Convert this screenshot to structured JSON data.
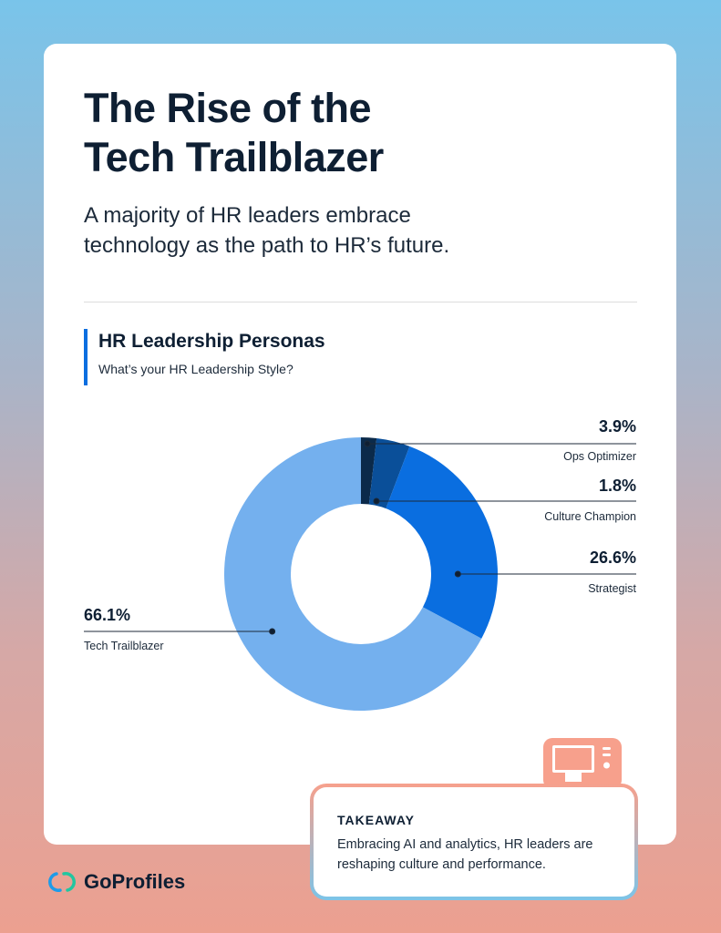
{
  "header": {
    "title_line1": "The Rise of the",
    "title_line2": "Tech Trailblazer",
    "subtitle_line1": "A majority of HR leaders embrace",
    "subtitle_line2": "technology as the path to HR’s future."
  },
  "section": {
    "title": "HR Leadership Personas",
    "subtitle": "What’s your HR Leadership Style?"
  },
  "chart_data": {
    "type": "pie",
    "donut": true,
    "title": "HR Leadership Personas",
    "slices": [
      {
        "label": "Culture Champion",
        "value": 1.8,
        "display": "1.8%",
        "color": "#0b2a4a"
      },
      {
        "label": "Ops Optimizer",
        "value": 3.9,
        "display": "3.9%",
        "color": "#0a4f99"
      },
      {
        "label": "Strategist",
        "value": 26.6,
        "display": "26.6%",
        "color": "#0a6ee0"
      },
      {
        "label": "Tech Trailblazer",
        "value": 66.1,
        "display": "66.1%",
        "color": "#74b0ee"
      }
    ]
  },
  "takeaway": {
    "title": "TAKEAWAY",
    "text_line1": "Embracing AI and analytics, HR leaders are",
    "text_line2": "reshaping culture and performance.",
    "icon": "computer-icon"
  },
  "brand": {
    "name": "GoProfiles",
    "icon": "linked-rings-logo"
  },
  "colors": {
    "accent": "#0a6ee0",
    "takeaway_border_top": "#f7a08c",
    "takeaway_border_bottom": "#7cc4e8"
  }
}
